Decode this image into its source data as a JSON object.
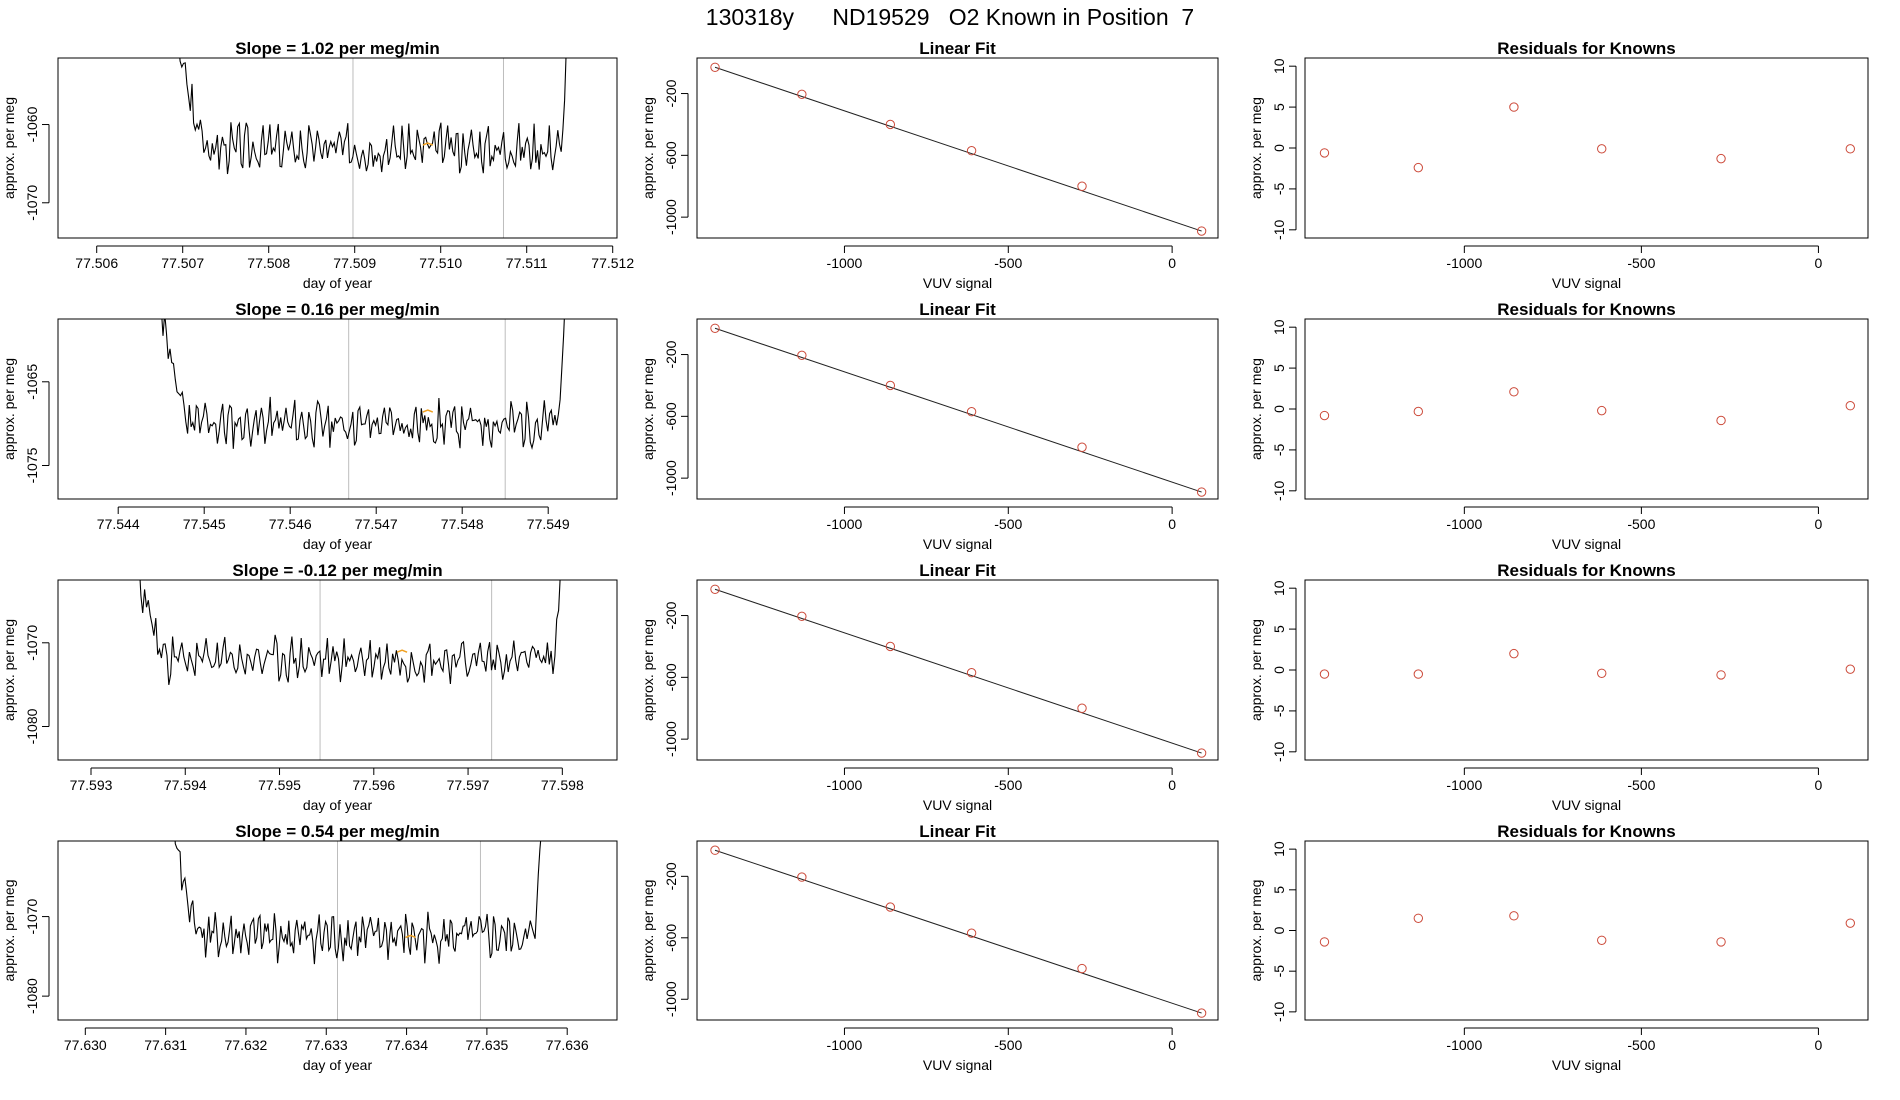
{
  "page_title": "130318y      ND19529   O2 Known in Position  7",
  "colors": {
    "trace": "#000000",
    "vline": "#bdbdbd",
    "marker": "#f0a020",
    "point": "#cc4a3a",
    "axis": "#000000"
  },
  "chart_data": [
    {
      "row": 0,
      "type": "line",
      "title": "Slope =  1.02  per meg/min",
      "xlabel": "day of year",
      "ylabel": "approx. per meg",
      "xlim": [
        77.50555,
        77.51205
      ],
      "ylim": [
        -1074.5,
        -1051.5
      ],
      "xticks": [
        77.506,
        77.507,
        77.508,
        77.509,
        77.51,
        77.511,
        77.512
      ],
      "xtick_labels": [
        "77.506",
        "77.507",
        "77.508",
        "77.509",
        "77.510",
        "77.511",
        "77.512"
      ],
      "yticks": [
        -1060,
        -1070
      ],
      "ytick_labels": [
        "-1060",
        "-1070"
      ],
      "trace": {
        "x0": 77.50695,
        "x1": 77.51148,
        "base": -1063,
        "amp": 2.6,
        "seed": 3
      },
      "vlines": [
        77.50898,
        77.51073
      ],
      "marker": {
        "x": 77.50985,
        "y": -1062.5
      }
    },
    {
      "row": 0,
      "type": "scatter",
      "title": "Linear Fit",
      "xlabel": "VUV signal",
      "ylabel": "approx. per meg",
      "xlim": [
        -1450,
        140
      ],
      "ylim": [
        -1135,
        30
      ],
      "xticks": [
        -1000,
        -500,
        0
      ],
      "xtick_labels": [
        "-1000",
        "-500",
        "0"
      ],
      "yticks": [
        -200,
        -600,
        -1000
      ],
      "ytick_labels": [
        "-200",
        "-600",
        "-1000"
      ],
      "x": [
        -1395,
        -1130,
        -860,
        -612,
        -275,
        90
      ],
      "y": [
        -30,
        -205,
        -400,
        -570,
        -800,
        -1090
      ],
      "fit": [
        [
          -1395,
          -30
        ],
        [
          90,
          -1090
        ]
      ]
    },
    {
      "row": 0,
      "type": "scatter",
      "title": "Residuals for Knowns",
      "xlabel": "VUV signal",
      "ylabel": "approx. per meg",
      "xlim": [
        -1450,
        140
      ],
      "ylim": [
        -11,
        11
      ],
      "xticks": [
        -1000,
        -500,
        0
      ],
      "xtick_labels": [
        "-1000",
        "-500",
        "0"
      ],
      "yticks": [
        10,
        5,
        0,
        -5,
        -10
      ],
      "ytick_labels": [
        "10",
        "5",
        "0",
        "-5",
        "-10"
      ],
      "x": [
        -1395,
        -1130,
        -860,
        -612,
        -275,
        90
      ],
      "y": [
        -0.6,
        -2.4,
        5.0,
        -0.1,
        -1.3,
        -0.1
      ]
    },
    {
      "row": 1,
      "type": "line",
      "title": "Slope =  0.16  per meg/min",
      "xlabel": "day of year",
      "ylabel": "approx. per meg",
      "xlim": [
        77.5433,
        77.5498
      ],
      "ylim": [
        -1079,
        -1057.5
      ],
      "xticks": [
        77.544,
        77.545,
        77.546,
        77.547,
        77.548,
        77.549
      ],
      "xtick_labels": [
        "77.544",
        "77.545",
        "77.546",
        "77.547",
        "77.548",
        "77.549"
      ],
      "yticks": [
        -1065,
        -1075
      ],
      "ytick_labels": [
        "-1065",
        "-1075"
      ],
      "trace": {
        "x0": 77.5445,
        "x1": 77.5492,
        "base": -1070,
        "amp": 2.4,
        "seed": 11
      },
      "vlines": [
        77.54668,
        77.5485
      ],
      "marker": {
        "x": 77.5476,
        "y": -1068.5
      }
    },
    {
      "row": 1,
      "type": "scatter",
      "title": "Linear Fit",
      "xlabel": "VUV signal",
      "ylabel": "approx. per meg",
      "xlim": [
        -1450,
        140
      ],
      "ylim": [
        -1135,
        30
      ],
      "xticks": [
        -1000,
        -500,
        0
      ],
      "xtick_labels": [
        "-1000",
        "-500",
        "0"
      ],
      "yticks": [
        -200,
        -600,
        -1000
      ],
      "ytick_labels": [
        "-200",
        "-600",
        "-1000"
      ],
      "x": [
        -1395,
        -1130,
        -860,
        -612,
        -275,
        90
      ],
      "y": [
        -30,
        -205,
        -400,
        -570,
        -800,
        -1090
      ],
      "fit": [
        [
          -1395,
          -30
        ],
        [
          90,
          -1090
        ]
      ]
    },
    {
      "row": 1,
      "type": "scatter",
      "title": "Residuals for Knowns",
      "xlabel": "VUV signal",
      "ylabel": "approx. per meg",
      "xlim": [
        -1450,
        140
      ],
      "ylim": [
        -11,
        11
      ],
      "xticks": [
        -1000,
        -500,
        0
      ],
      "xtick_labels": [
        "-1000",
        "-500",
        "0"
      ],
      "yticks": [
        10,
        5,
        0,
        -5,
        -10
      ],
      "ytick_labels": [
        "10",
        "5",
        "0",
        "-5",
        "-10"
      ],
      "x": [
        -1395,
        -1130,
        -860,
        -612,
        -275,
        90
      ],
      "y": [
        -0.8,
        -0.3,
        2.1,
        -0.2,
        -1.4,
        0.4
      ]
    },
    {
      "row": 2,
      "type": "line",
      "title": "Slope =  -0.12  per meg/min",
      "xlabel": "day of year",
      "ylabel": "approx. per meg",
      "xlim": [
        77.59265,
        77.59858
      ],
      "ylim": [
        -1084,
        -1062.5
      ],
      "xticks": [
        77.593,
        77.594,
        77.595,
        77.596,
        77.597,
        77.598
      ],
      "xtick_labels": [
        "77.593",
        "77.594",
        "77.595",
        "77.596",
        "77.597",
        "77.598"
      ],
      "yticks": [
        -1070,
        -1080
      ],
      "ytick_labels": [
        "-1070",
        "-1080"
      ],
      "trace": {
        "x0": 77.59345,
        "x1": 77.598,
        "base": -1072,
        "amp": 2.3,
        "seed": 23
      },
      "vlines": [
        77.59543,
        77.59725
      ],
      "marker": {
        "x": 77.5963,
        "y": -1071
      }
    },
    {
      "row": 2,
      "type": "scatter",
      "title": "Linear Fit",
      "xlabel": "VUV signal",
      "ylabel": "approx. per meg",
      "xlim": [
        -1450,
        140
      ],
      "ylim": [
        -1135,
        30
      ],
      "xticks": [
        -1000,
        -500,
        0
      ],
      "xtick_labels": [
        "-1000",
        "-500",
        "0"
      ],
      "yticks": [
        -200,
        -600,
        -1000
      ],
      "ytick_labels": [
        "-200",
        "-600",
        "-1000"
      ],
      "x": [
        -1395,
        -1130,
        -860,
        -612,
        -275,
        90
      ],
      "y": [
        -30,
        -205,
        -400,
        -570,
        -800,
        -1090
      ],
      "fit": [
        [
          -1395,
          -30
        ],
        [
          90,
          -1090
        ]
      ]
    },
    {
      "row": 2,
      "type": "scatter",
      "title": "Residuals for Knowns",
      "xlabel": "VUV signal",
      "ylabel": "approx. per meg",
      "xlim": [
        -1450,
        140
      ],
      "ylim": [
        -11,
        11
      ],
      "xticks": [
        -1000,
        -500,
        0
      ],
      "xtick_labels": [
        "-1000",
        "-500",
        "0"
      ],
      "yticks": [
        10,
        5,
        0,
        -5,
        -10
      ],
      "ytick_labels": [
        "10",
        "5",
        "0",
        "-5",
        "-10"
      ],
      "x": [
        -1395,
        -1130,
        -860,
        -612,
        -275,
        90
      ],
      "y": [
        -0.5,
        -0.5,
        2.0,
        -0.4,
        -0.6,
        0.1
      ]
    },
    {
      "row": 3,
      "type": "line",
      "title": "Slope =  0.54  per meg/min",
      "xlabel": "day of year",
      "ylabel": "approx. per meg",
      "xlim": [
        77.62966,
        77.63662
      ],
      "ylim": [
        -1083,
        -1060.5
      ],
      "xticks": [
        77.63,
        77.631,
        77.632,
        77.633,
        77.634,
        77.635,
        77.636
      ],
      "xtick_labels": [
        "77.630",
        "77.631",
        "77.632",
        "77.633",
        "77.634",
        "77.635",
        "77.636"
      ],
      "yticks": [
        -1070,
        -1080
      ],
      "ytick_labels": [
        "-1070",
        "-1080"
      ],
      "trace": {
        "x0": 77.6311,
        "x1": 77.63568,
        "base": -1072.5,
        "amp": 2.6,
        "seed": 41
      },
      "vlines": [
        77.63314,
        77.63492
      ],
      "marker": {
        "x": 77.63405,
        "y": -1072.5
      }
    },
    {
      "row": 3,
      "type": "scatter",
      "title": "Linear Fit",
      "xlabel": "VUV signal",
      "ylabel": "approx. per meg",
      "xlim": [
        -1450,
        140
      ],
      "ylim": [
        -1135,
        30
      ],
      "xticks": [
        -1000,
        -500,
        0
      ],
      "xtick_labels": [
        "-1000",
        "-500",
        "0"
      ],
      "yticks": [
        -200,
        -600,
        -1000
      ],
      "ytick_labels": [
        "-200",
        "-600",
        "-1000"
      ],
      "x": [
        -1395,
        -1130,
        -860,
        -612,
        -275,
        90
      ],
      "y": [
        -30,
        -205,
        -400,
        -570,
        -800,
        -1090
      ],
      "fit": [
        [
          -1395,
          -30
        ],
        [
          90,
          -1090
        ]
      ]
    },
    {
      "row": 3,
      "type": "scatter",
      "title": "Residuals for Knowns",
      "xlabel": "VUV signal",
      "ylabel": "approx. per meg",
      "xlim": [
        -1450,
        140
      ],
      "ylim": [
        -11,
        11
      ],
      "xticks": [
        -1000,
        -500,
        0
      ],
      "xtick_labels": [
        "-1000",
        "-500",
        "0"
      ],
      "yticks": [
        10,
        5,
        0,
        -5,
        -10
      ],
      "ytick_labels": [
        "10",
        "5",
        "0",
        "-5",
        "-10"
      ],
      "x": [
        -1395,
        -1130,
        -860,
        -612,
        -275,
        90
      ],
      "y": [
        -1.4,
        1.5,
        1.8,
        -1.2,
        -1.4,
        0.9
      ]
    }
  ]
}
